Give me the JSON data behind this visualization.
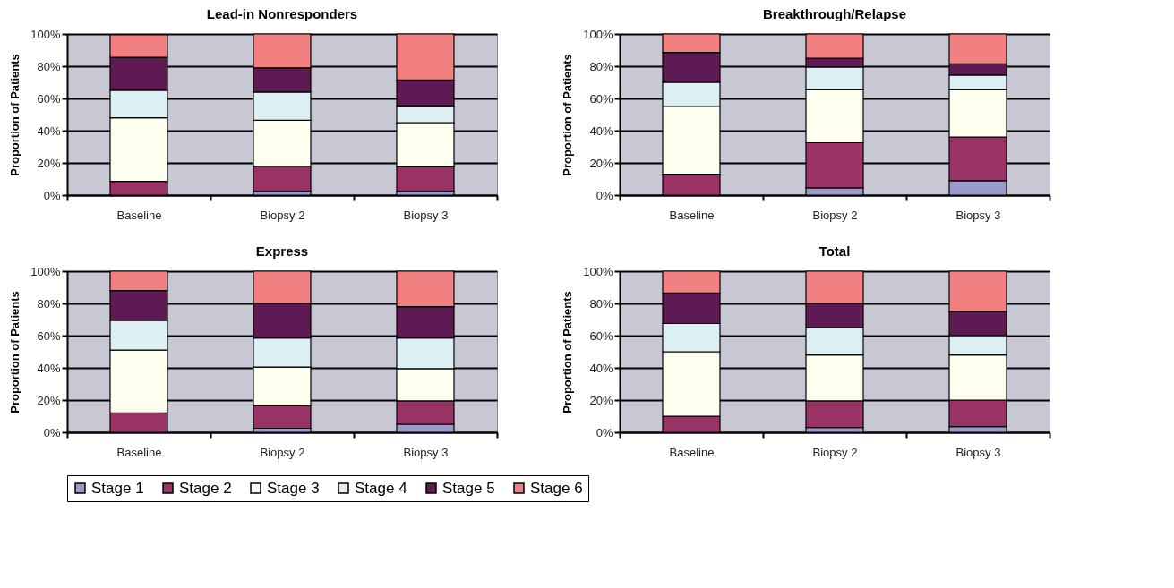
{
  "chart_data": [
    {
      "type": "bar",
      "title": "Lead-in Nonresponders",
      "ylabel": "Proportion of Patients",
      "categories": [
        "Baseline",
        "Biopsy 2",
        "Biopsy 3"
      ],
      "stacked": true,
      "grid": "y",
      "legend": "bottom",
      "ylim": [
        0,
        100
      ],
      "yticks": [
        {
          "value": 0,
          "label": "0%"
        },
        {
          "value": 20,
          "label": "20%"
        },
        {
          "value": 40,
          "label": "40%"
        },
        {
          "value": 60,
          "label": "60%"
        },
        {
          "value": 80,
          "label": "80%"
        },
        {
          "value": 100,
          "label": "100%"
        }
      ],
      "series": [
        {
          "name": "Stage 1",
          "color": "#9999cc",
          "values": [
            null,
            2.5,
            2.5
          ]
        },
        {
          "name": "Stage 2",
          "color": "#993366",
          "values": [
            8.5,
            15.5,
            15
          ]
        },
        {
          "name": "Stage 3",
          "color": "#fffff0",
          "values": [
            39.5,
            28.5,
            27.5
          ]
        },
        {
          "name": "Stage 4",
          "color": "#dcf0f4",
          "values": [
            17,
            17.5,
            10.5
          ]
        },
        {
          "name": "Stage 5",
          "color": "#5e1a52",
          "values": [
            20.5,
            15,
            16
          ]
        },
        {
          "name": "Stage 6",
          "color": "#f28080",
          "values": [
            14,
            21,
            28.5
          ]
        }
      ]
    },
    {
      "type": "bar",
      "title": "Breakthrough/Relapse",
      "ylabel": "Proportion of Patients",
      "categories": [
        "Baseline",
        "Biopsy 2",
        "Biopsy 3"
      ],
      "stacked": true,
      "grid": "y",
      "legend": "bottom",
      "ylim": [
        0,
        100
      ],
      "yticks": [
        {
          "value": 0,
          "label": "0%"
        },
        {
          "value": 20,
          "label": "20%"
        },
        {
          "value": 40,
          "label": "40%"
        },
        {
          "value": 60,
          "label": "60%"
        },
        {
          "value": 80,
          "label": "80%"
        },
        {
          "value": 100,
          "label": "100%"
        }
      ],
      "series": [
        {
          "name": "Stage 1",
          "color": "#9999cc",
          "values": [
            0,
            4.5,
            9
          ]
        },
        {
          "name": "Stage 2",
          "color": "#993366",
          "values": [
            13,
            28,
            27
          ]
        },
        {
          "name": "Stage 3",
          "color": "#fffff0",
          "values": [
            42,
            33,
            29.5
          ]
        },
        {
          "name": "Stage 4",
          "color": "#dcf0f4",
          "values": [
            15,
            14,
            9
          ]
        },
        {
          "name": "Stage 5",
          "color": "#5e1a52",
          "values": [
            18.5,
            5.5,
            7
          ]
        },
        {
          "name": "Stage 6",
          "color": "#f28080",
          "values": [
            11.5,
            15,
            18.5
          ]
        }
      ]
    },
    {
      "type": "bar",
      "title": "Express",
      "ylabel": "Proportion of Patients",
      "categories": [
        "Baseline",
        "Biopsy 2",
        "Biopsy 3"
      ],
      "stacked": true,
      "grid": "y",
      "legend": "bottom",
      "ylim": [
        0,
        100
      ],
      "yticks": [
        {
          "value": 0,
          "label": "0%"
        },
        {
          "value": 20,
          "label": "20%"
        },
        {
          "value": 40,
          "label": "40%"
        },
        {
          "value": 60,
          "label": "60%"
        },
        {
          "value": 80,
          "label": "80%"
        },
        {
          "value": 100,
          "label": "100%"
        }
      ],
      "series": [
        {
          "name": "Stage 1",
          "color": "#9999cc",
          "values": [
            0,
            2.5,
            5
          ]
        },
        {
          "name": "Stage 2",
          "color": "#993366",
          "values": [
            12,
            14,
            14.5
          ]
        },
        {
          "name": "Stage 3",
          "color": "#fffff0",
          "values": [
            39,
            24,
            20
          ]
        },
        {
          "name": "Stage 4",
          "color": "#dcf0f4",
          "values": [
            18.5,
            18,
            19
          ]
        },
        {
          "name": "Stage 5",
          "color": "#5e1a52",
          "values": [
            18.5,
            21.5,
            19.5
          ]
        },
        {
          "name": "Stage 6",
          "color": "#f28080",
          "values": [
            12,
            20,
            22
          ]
        }
      ]
    },
    {
      "type": "bar",
      "title": "Total",
      "ylabel": "Proportion of Patients",
      "categories": [
        "Baseline",
        "Biopsy 2",
        "Biopsy 3"
      ],
      "stacked": true,
      "grid": "y",
      "legend": "bottom",
      "ylim": [
        0,
        100
      ],
      "yticks": [
        {
          "value": 0,
          "label": "0%"
        },
        {
          "value": 20,
          "label": "20%"
        },
        {
          "value": 40,
          "label": "40%"
        },
        {
          "value": 60,
          "label": "60%"
        },
        {
          "value": 80,
          "label": "80%"
        },
        {
          "value": 100,
          "label": "100%"
        }
      ],
      "series": [
        {
          "name": "Stage 1",
          "color": "#9999cc",
          "values": [
            0,
            3,
            3.5
          ]
        },
        {
          "name": "Stage 2",
          "color": "#993366",
          "values": [
            10,
            16.5,
            16.5
          ]
        },
        {
          "name": "Stage 3",
          "color": "#fffff0",
          "values": [
            40,
            28.5,
            28
          ]
        },
        {
          "name": "Stage 4",
          "color": "#dcf0f4",
          "values": [
            17.5,
            17,
            12
          ]
        },
        {
          "name": "Stage 5",
          "color": "#5e1a52",
          "values": [
            19,
            15,
            15
          ]
        },
        {
          "name": "Stage 6",
          "color": "#f28080",
          "values": [
            13.5,
            20,
            25
          ]
        }
      ]
    }
  ]
}
